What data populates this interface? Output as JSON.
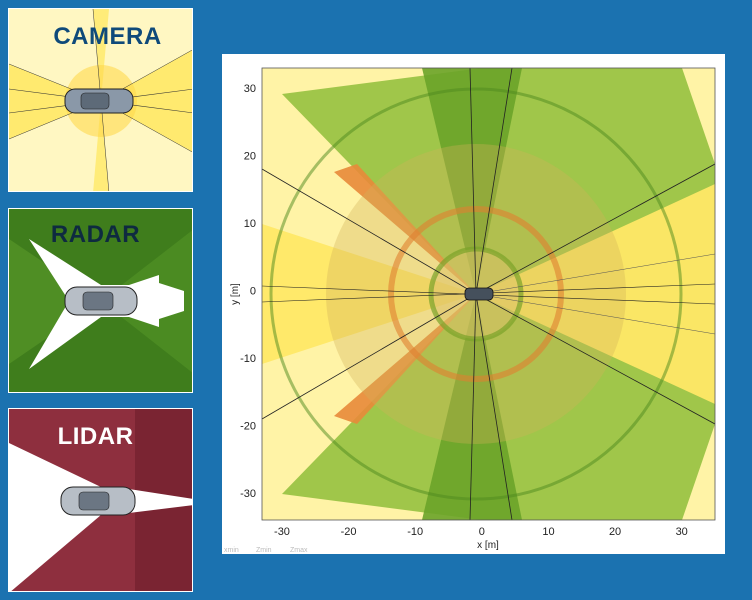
{
  "panels": {
    "camera": {
      "title": "CAMERA",
      "color": "#fff3a6"
    },
    "radar": {
      "title": "RADAR",
      "color": "#3f7d1c"
    },
    "lidar": {
      "title": "LIDAR",
      "color": "#8e2f3e"
    }
  },
  "plot": {
    "xlabel": "x [m]",
    "ylabel": "y [m]",
    "x_ticks": [
      -30,
      -20,
      -10,
      0,
      10,
      20,
      30
    ],
    "y_ticks": [
      30,
      20,
      10,
      0,
      -10,
      -20,
      -30
    ],
    "xlim": [
      -33,
      35
    ],
    "ylim": [
      -34,
      33
    ],
    "footer_labels": [
      "xmin",
      "Zmin",
      "Zmax"
    ]
  },
  "colors": {
    "background": "#1b72b0",
    "camera": "#ffe866",
    "radar": "#7fb12a",
    "lidar": "#e88a3a"
  }
}
